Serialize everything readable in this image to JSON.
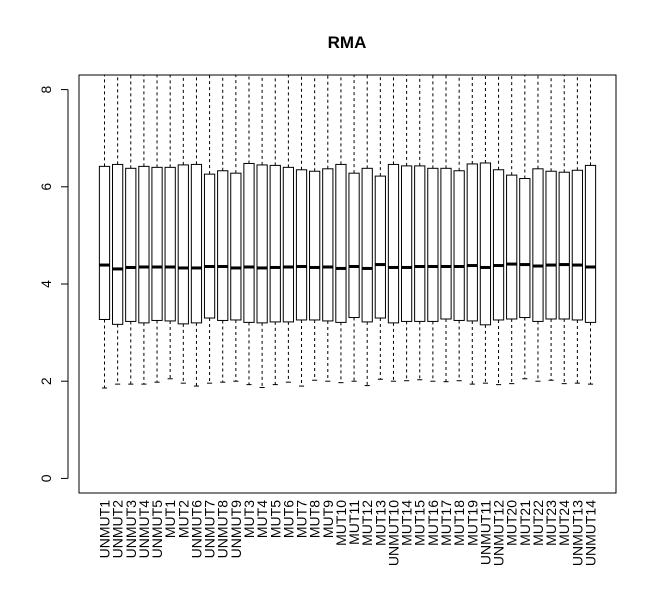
{
  "chart_data": {
    "type": "box",
    "title": "RMA",
    "xlabel": "",
    "ylabel": "",
    "ylim": [
      -0.3,
      8.3
    ],
    "yticks": [
      0,
      2,
      4,
      6,
      8
    ],
    "grid": false,
    "categories": [
      "UNMUT1",
      "UNMUT2",
      "UNMUT3",
      "UNMUT4",
      "UNMUT5",
      "MUT1",
      "MUT2",
      "UNMUT6",
      "UNMUT7",
      "UNMUT8",
      "UNMUT9",
      "MUT3",
      "MUT4",
      "MUT5",
      "MUT6",
      "MUT7",
      "MUT8",
      "MUT9",
      "MUT10",
      "MUT11",
      "MUT12",
      "MUT13",
      "UNMUT10",
      "MUT14",
      "MUT15",
      "MUT16",
      "MUT17",
      "MUT18",
      "MUT19",
      "UNMUT11",
      "UNMUT12",
      "MUT20",
      "MUT21",
      "MUT22",
      "MUT23",
      "MUT24",
      "UNMUT13",
      "UNMUT14"
    ],
    "boxes": [
      {
        "lo": 1.86,
        "q1": 3.27,
        "med": 4.39,
        "q3": 6.42,
        "hi": 8.3
      },
      {
        "lo": 1.94,
        "q1": 3.17,
        "med": 4.31,
        "q3": 6.46,
        "hi": 8.3
      },
      {
        "lo": 1.94,
        "q1": 3.23,
        "med": 4.34,
        "q3": 6.38,
        "hi": 8.3
      },
      {
        "lo": 1.94,
        "q1": 3.2,
        "med": 4.35,
        "q3": 6.42,
        "hi": 8.3
      },
      {
        "lo": 1.98,
        "q1": 3.25,
        "med": 4.35,
        "q3": 6.4,
        "hi": 8.3
      },
      {
        "lo": 2.05,
        "q1": 3.24,
        "med": 4.35,
        "q3": 6.4,
        "hi": 8.3
      },
      {
        "lo": 1.96,
        "q1": 3.18,
        "med": 4.33,
        "q3": 6.45,
        "hi": 8.3
      },
      {
        "lo": 1.9,
        "q1": 3.2,
        "med": 4.33,
        "q3": 6.46,
        "hi": 8.3
      },
      {
        "lo": 1.96,
        "q1": 3.3,
        "med": 4.36,
        "q3": 6.26,
        "hi": 8.3
      },
      {
        "lo": 1.98,
        "q1": 3.25,
        "med": 4.36,
        "q3": 6.33,
        "hi": 8.3
      },
      {
        "lo": 2.0,
        "q1": 3.26,
        "med": 4.33,
        "q3": 6.28,
        "hi": 8.3
      },
      {
        "lo": 1.93,
        "q1": 3.21,
        "med": 4.35,
        "q3": 6.48,
        "hi": 8.3
      },
      {
        "lo": 1.87,
        "q1": 3.2,
        "med": 4.33,
        "q3": 6.45,
        "hi": 8.3
      },
      {
        "lo": 1.93,
        "q1": 3.22,
        "med": 4.34,
        "q3": 6.44,
        "hi": 8.3
      },
      {
        "lo": 1.98,
        "q1": 3.22,
        "med": 4.35,
        "q3": 6.4,
        "hi": 8.3
      },
      {
        "lo": 1.9,
        "q1": 3.26,
        "med": 4.36,
        "q3": 6.35,
        "hi": 8.3
      },
      {
        "lo": 2.02,
        "q1": 3.26,
        "med": 4.34,
        "q3": 6.32,
        "hi": 8.3
      },
      {
        "lo": 2.0,
        "q1": 3.24,
        "med": 4.35,
        "q3": 6.37,
        "hi": 8.3
      },
      {
        "lo": 1.97,
        "q1": 3.21,
        "med": 4.32,
        "q3": 6.46,
        "hi": 8.3
      },
      {
        "lo": 2.0,
        "q1": 3.31,
        "med": 4.36,
        "q3": 6.28,
        "hi": 8.3
      },
      {
        "lo": 1.91,
        "q1": 3.22,
        "med": 4.32,
        "q3": 6.38,
        "hi": 8.3
      },
      {
        "lo": 2.04,
        "q1": 3.3,
        "med": 4.4,
        "q3": 6.22,
        "hi": 8.3
      },
      {
        "lo": 2.0,
        "q1": 3.2,
        "med": 4.34,
        "q3": 6.46,
        "hi": 8.3
      },
      {
        "lo": 2.01,
        "q1": 3.23,
        "med": 4.34,
        "q3": 6.43,
        "hi": 8.3
      },
      {
        "lo": 2.03,
        "q1": 3.23,
        "med": 4.36,
        "q3": 6.43,
        "hi": 8.3
      },
      {
        "lo": 2.0,
        "q1": 3.23,
        "med": 4.36,
        "q3": 6.38,
        "hi": 8.3
      },
      {
        "lo": 1.99,
        "q1": 3.28,
        "med": 4.36,
        "q3": 6.38,
        "hi": 8.3
      },
      {
        "lo": 2.01,
        "q1": 3.25,
        "med": 4.36,
        "q3": 6.33,
        "hi": 8.3
      },
      {
        "lo": 1.94,
        "q1": 3.24,
        "med": 4.38,
        "q3": 6.47,
        "hi": 8.3
      },
      {
        "lo": 1.96,
        "q1": 3.16,
        "med": 4.34,
        "q3": 6.49,
        "hi": 8.3
      },
      {
        "lo": 1.93,
        "q1": 3.26,
        "med": 4.38,
        "q3": 6.35,
        "hi": 8.3
      },
      {
        "lo": 1.95,
        "q1": 3.28,
        "med": 4.41,
        "q3": 6.24,
        "hi": 8.3
      },
      {
        "lo": 2.05,
        "q1": 3.31,
        "med": 4.4,
        "q3": 6.17,
        "hi": 8.3
      },
      {
        "lo": 2.0,
        "q1": 3.23,
        "med": 4.37,
        "q3": 6.37,
        "hi": 8.3
      },
      {
        "lo": 2.02,
        "q1": 3.28,
        "med": 4.39,
        "q3": 6.32,
        "hi": 8.3
      },
      {
        "lo": 1.95,
        "q1": 3.28,
        "med": 4.4,
        "q3": 6.3,
        "hi": 8.3
      },
      {
        "lo": 1.96,
        "q1": 3.26,
        "med": 4.39,
        "q3": 6.34,
        "hi": 8.3
      },
      {
        "lo": 1.94,
        "q1": 3.21,
        "med": 4.35,
        "q3": 6.44,
        "hi": 8.3
      }
    ]
  }
}
